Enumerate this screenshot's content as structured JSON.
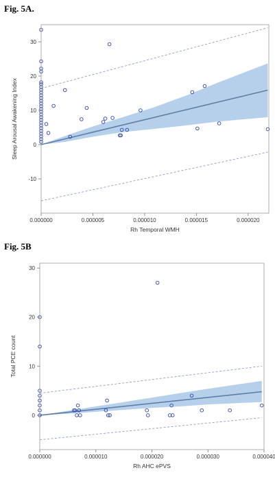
{
  "figures": [
    {
      "label": "Fig. 5A.",
      "chart_data": {
        "type": "scatter",
        "title": "",
        "xlabel": "Rh Temporal WMH",
        "ylabel": "Sleep Arousal Awakening Index",
        "xlim": [
          0,
          2.2e-05
        ],
        "ylim": [
          -20,
          35
        ],
        "x_ticks": [
          0,
          5e-06,
          1e-05,
          1.5e-05,
          2e-05
        ],
        "x_tick_labels": [
          "0.000000",
          "0.000005",
          "0.000010",
          "0.000015",
          "0.000020"
        ],
        "y_ticks": [
          -10,
          0,
          10,
          20,
          30
        ],
        "y_tick_labels": [
          "-10",
          "0",
          "10",
          "20",
          "30"
        ],
        "grid": false,
        "points": [
          {
            "x": 0,
            "y": 33.5
          },
          {
            "x": 0,
            "y": 24.3
          },
          {
            "x": 0,
            "y": 22.2
          },
          {
            "x": 0,
            "y": 21.3
          },
          {
            "x": 0,
            "y": 18.2
          },
          {
            "x": 0,
            "y": 17.6
          },
          {
            "x": 0,
            "y": 16.8
          },
          {
            "x": 0,
            "y": 16.0
          },
          {
            "x": 0,
            "y": 15.2
          },
          {
            "x": 0,
            "y": 14.4
          },
          {
            "x": 0,
            "y": 13.6
          },
          {
            "x": 0,
            "y": 12.8
          },
          {
            "x": 0,
            "y": 12.0
          },
          {
            "x": 0,
            "y": 11.2
          },
          {
            "x": 0,
            "y": 10.4
          },
          {
            "x": 0,
            "y": 9.6
          },
          {
            "x": 0,
            "y": 8.8
          },
          {
            "x": 0,
            "y": 8.0
          },
          {
            "x": 0,
            "y": 7.2
          },
          {
            "x": 0,
            "y": 6.4
          },
          {
            "x": 0,
            "y": 5.6
          },
          {
            "x": 0,
            "y": 4.8
          },
          {
            "x": 0,
            "y": 4.0
          },
          {
            "x": 0,
            "y": 3.2
          },
          {
            "x": 0,
            "y": 2.4
          },
          {
            "x": 0,
            "y": 1.6
          },
          {
            "x": 0,
            "y": 0.8
          },
          {
            "x": 5e-07,
            "y": 6.0
          },
          {
            "x": 7e-07,
            "y": 3.4
          },
          {
            "x": 1.2e-06,
            "y": 11.3
          },
          {
            "x": 2.3e-06,
            "y": 15.9
          },
          {
            "x": 2.8e-06,
            "y": 2.3
          },
          {
            "x": 3.9e-06,
            "y": 7.4
          },
          {
            "x": 4.4e-06,
            "y": 10.7
          },
          {
            "x": 6e-06,
            "y": 6.6
          },
          {
            "x": 6.2e-06,
            "y": 7.6
          },
          {
            "x": 6.6e-06,
            "y": 29.3
          },
          {
            "x": 6.9e-06,
            "y": 7.8
          },
          {
            "x": 7.6e-06,
            "y": 2.7
          },
          {
            "x": 7.7e-06,
            "y": 2.7
          },
          {
            "x": 7.8e-06,
            "y": 4.3
          },
          {
            "x": 8.3e-06,
            "y": 4.3
          },
          {
            "x": 9.6e-06,
            "y": 10.0
          },
          {
            "x": 1.46e-05,
            "y": 15.3
          },
          {
            "x": 1.51e-05,
            "y": 4.7
          },
          {
            "x": 1.58e-05,
            "y": 17.1
          },
          {
            "x": 1.72e-05,
            "y": 6.2
          },
          {
            "x": 2.19e-05,
            "y": 4.5
          }
        ],
        "fit_line": [
          {
            "x": 0,
            "y": 0
          },
          {
            "x": 2.19e-05,
            "y": 15.9
          }
        ],
        "confidence_band": {
          "x": [
            0,
            2.3e-06,
            5e-06,
            8e-06,
            1.1e-05,
            1.4e-05,
            1.7e-05,
            2.19e-05
          ],
          "lower": [
            0,
            0.8,
            2.3,
            3.7,
            4.6,
            5.6,
            6.7,
            8.0
          ],
          "upper": [
            0,
            2.5,
            5.3,
            8.1,
            11.0,
            14.3,
            18.0,
            23.7
          ]
        },
        "prediction_lower": [
          {
            "x": 0,
            "y": -16.4
          },
          {
            "x": 2.19e-05,
            "y": -2.2
          }
        ],
        "prediction_upper": [
          {
            "x": 0,
            "y": 16.4
          },
          {
            "x": 2.19e-05,
            "y": 34.1
          }
        ],
        "colors": {
          "points": "#2b44a8",
          "band": "#a9c8e8",
          "fit": "#5e7ea6",
          "prediction": "#8e9ad0"
        }
      }
    },
    {
      "label": "Fig. 5B",
      "chart_data": {
        "type": "scatter",
        "title": "",
        "xlabel": "Rh AHC ePVS",
        "ylabel": "Total PCE count",
        "xlim": [
          0,
          4e-05
        ],
        "ylim": [
          -7,
          31
        ],
        "x_ticks": [
          0,
          1e-05,
          2e-05,
          3e-05,
          4e-05
        ],
        "x_tick_labels": [
          "0.000000",
          "0.000010",
          "0.000020",
          "0.000030",
          "0.000040"
        ],
        "y_ticks": [
          0,
          10,
          20,
          30
        ],
        "y_tick_labels": [
          "0",
          "10",
          "20",
          "30"
        ],
        "grid": false,
        "points": [
          {
            "x": 0,
            "y": 20
          },
          {
            "x": 0,
            "y": 14
          },
          {
            "x": 0,
            "y": 5
          },
          {
            "x": 0,
            "y": 4
          },
          {
            "x": 0,
            "y": 3
          },
          {
            "x": 0,
            "y": 2
          },
          {
            "x": 0,
            "y": 1
          },
          {
            "x": 0,
            "y": 0
          },
          {
            "x": 6.1e-06,
            "y": 1
          },
          {
            "x": 6.3e-06,
            "y": 1
          },
          {
            "x": 6.6e-06,
            "y": 0
          },
          {
            "x": 6.8e-06,
            "y": 2
          },
          {
            "x": 7e-06,
            "y": 1
          },
          {
            "x": 7.2e-06,
            "y": 0
          },
          {
            "x": 1.18e-05,
            "y": 1
          },
          {
            "x": 1.2e-05,
            "y": 3
          },
          {
            "x": 1.22e-05,
            "y": 0
          },
          {
            "x": 1.25e-05,
            "y": 0
          },
          {
            "x": 1.91e-05,
            "y": 1
          },
          {
            "x": 1.93e-05,
            "y": 0
          },
          {
            "x": 2.1e-05,
            "y": 27
          },
          {
            "x": 2.32e-05,
            "y": 0
          },
          {
            "x": 2.35e-05,
            "y": 2
          },
          {
            "x": 2.37e-05,
            "y": 0
          },
          {
            "x": 2.71e-05,
            "y": 4
          },
          {
            "x": 2.89e-05,
            "y": 1
          },
          {
            "x": 3.39e-05,
            "y": 1
          },
          {
            "x": 3.96e-05,
            "y": 2
          }
        ],
        "fit_line": [
          {
            "x": 0,
            "y": 0
          },
          {
            "x": 3.96e-05,
            "y": 4.8
          }
        ],
        "confidence_band": {
          "x": [
            0,
            5e-06,
            1e-05,
            1.5e-05,
            2e-05,
            2.5e-05,
            3e-05,
            3.96e-05
          ],
          "lower": [
            0,
            0.3,
            0.7,
            1.1,
            1.5,
            1.8,
            2.2,
            2.7
          ],
          "upper": [
            0,
            0.9,
            1.8,
            2.7,
            3.6,
            4.5,
            5.4,
            7.0
          ]
        },
        "prediction_lower": [
          {
            "x": 0,
            "y": -5.0
          },
          {
            "x": 3.96e-05,
            "y": -0.5
          }
        ],
        "prediction_upper": [
          {
            "x": 0,
            "y": 4.5
          },
          {
            "x": 3.96e-05,
            "y": 10.0
          }
        ],
        "colors": {
          "points": "#2b44a8",
          "band": "#a9c8e8",
          "fit": "#5e7ea6",
          "prediction": "#8e9ad0"
        }
      }
    }
  ]
}
